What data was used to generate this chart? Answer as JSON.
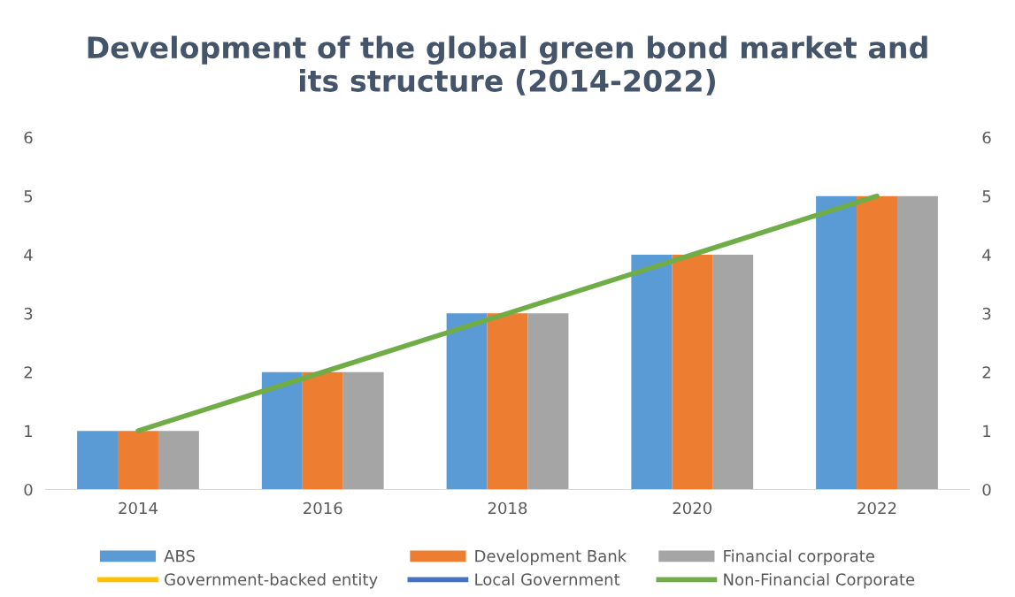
{
  "chart_data": {
    "type": "bar",
    "title": "Development of the global green bond market and\nits structure (2014-2022)",
    "categories": [
      "2014",
      "2016",
      "2018",
      "2020",
      "2022"
    ],
    "series": [
      {
        "name": "ABS",
        "color": "#5b9bd5",
        "values": [
          1,
          2,
          3,
          4,
          5
        ]
      },
      {
        "name": "Development Bank",
        "color": "#ed7d31",
        "values": [
          1,
          2,
          3,
          4,
          5
        ]
      },
      {
        "name": "Financial corporate",
        "color": "#a5a5a5",
        "values": [
          1,
          2,
          3,
          4,
          5
        ]
      },
      {
        "name": "Government-backed entity",
        "color": "#ffc000",
        "type": "line",
        "values": [
          null,
          null,
          null,
          null,
          null
        ]
      },
      {
        "name": "Local Government",
        "color": "#4472c4",
        "type": "line",
        "values": [
          null,
          null,
          null,
          null,
          null
        ]
      },
      {
        "name": "Non-Financial Corporate",
        "color": "#70ad47",
        "type": "line",
        "values": [
          1,
          2,
          3,
          4,
          5
        ]
      }
    ],
    "ylim": [
      0,
      6
    ],
    "yticks": [
      0,
      1,
      2,
      3,
      4,
      5,
      6
    ],
    "y2lim": [
      0,
      6
    ],
    "y2ticks": [
      0,
      1,
      2,
      3,
      4,
      5,
      6
    ],
    "grid": false,
    "legend": "bottom",
    "marker": "none",
    "line_style": "solid"
  }
}
